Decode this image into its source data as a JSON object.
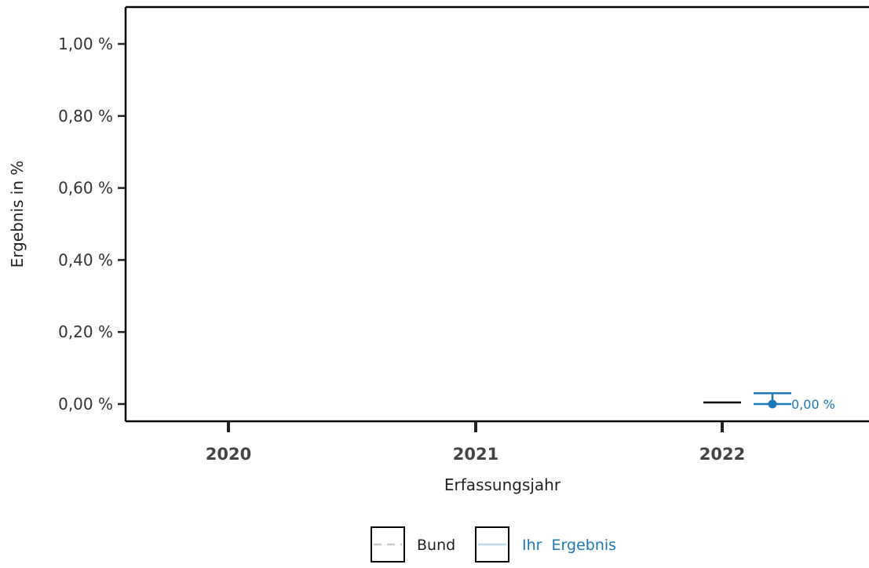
{
  "chart_data": {
    "type": "line",
    "title": "",
    "xlabel": "Erfassungsjahr",
    "ylabel": "Ergebnis in %",
    "categories": [
      "2020",
      "2021",
      "2022"
    ],
    "ylim": [
      0,
      1.0
    ],
    "yticks": [
      "0,00 %",
      "0,20 %",
      "0,40 %",
      "0,60 %",
      "0,80 %",
      "1,00 %"
    ],
    "ytick_values": [
      0,
      0.2,
      0.4,
      0.6,
      0.8,
      1.0
    ],
    "series": [
      {
        "name": "Bund",
        "color": "#000000",
        "values": [
          null,
          null,
          0.0
        ]
      },
      {
        "name": "Ihr Ergebnis",
        "color": "#1a78b8",
        "values": [
          null,
          null,
          0.0
        ],
        "ci": [
          null,
          null,
          [
            0.0,
            0.03
          ]
        ],
        "labels": [
          null,
          null,
          "0,00 %"
        ]
      }
    ],
    "legend": {
      "position": "bottom",
      "items": [
        {
          "label": "Bund",
          "style": "dashed",
          "color": "#c8c8c8",
          "text_color": "#222222"
        },
        {
          "label": "Ihr  Ergebnis",
          "style": "solid",
          "color": "#bcd8ea",
          "text_color": "#1a78b8"
        }
      ]
    },
    "grid": false
  }
}
